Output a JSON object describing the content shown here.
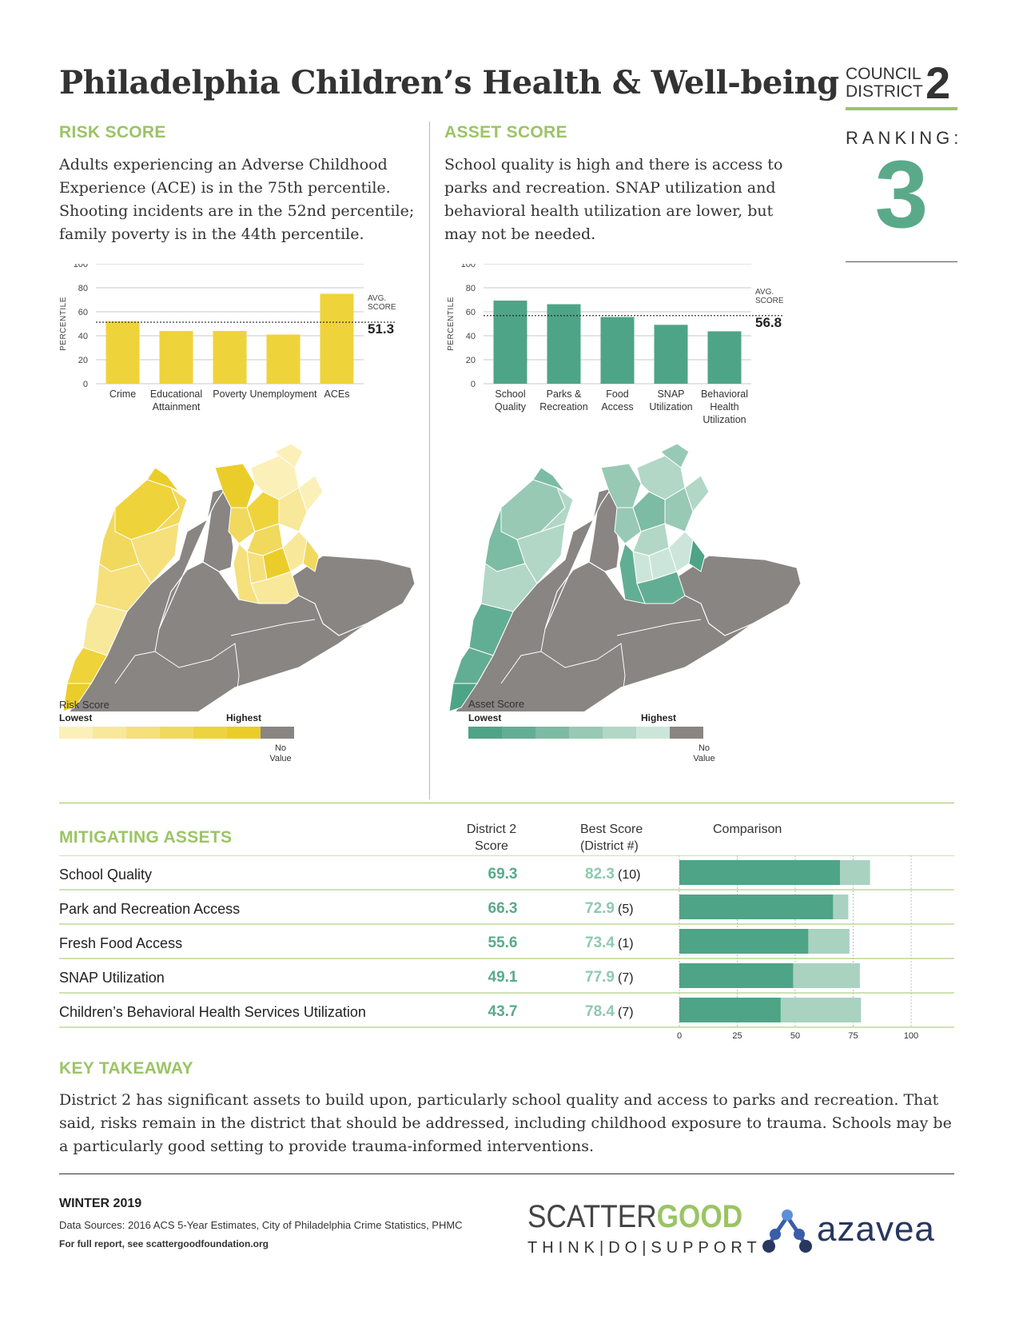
{
  "header": {
    "title": "Philadelphia Children’s Health & Well-being",
    "council_label_1": "COUNCIL",
    "council_label_2": "DISTRICT",
    "district_number": "2",
    "ranking_label": "RANKING:",
    "ranking_value": "3"
  },
  "risk": {
    "heading": "RISK SCORE",
    "text": "Adults experiencing an Adverse Childhood Experience (ACE) is in the 75th percentile. Shooting incidents are in the 52nd percentile; family poverty is in the 44th percentile.",
    "legend_title": "Risk Score",
    "legend_low": "Lowest",
    "legend_high": "Highest",
    "legend_no_value_1": "No",
    "legend_no_value_2": "Value",
    "legend_colors": [
      "#fbf0b8",
      "#f8e89a",
      "#f5e07c",
      "#f1d95e",
      "#eed340",
      "#ebcd2a",
      "#888583"
    ]
  },
  "asset": {
    "heading": "ASSET SCORE",
    "text": "School quality is high and there is access to parks and recreation. SNAP utilization and behavioral health utilization are lower, but may not be needed.",
    "legend_title": "Asset Score",
    "legend_low": "Lowest",
    "legend_high": "Highest",
    "legend_no_value_1": "No",
    "legend_no_value_2": "Value",
    "legend_colors": [
      "#4ea487",
      "#62ae94",
      "#7cbba4",
      "#98c9b5",
      "#b2d7c7",
      "#cce5da",
      "#888583"
    ]
  },
  "chart_data": [
    {
      "type": "bar",
      "name": "risk-chart",
      "categories": [
        "Crime",
        "Educational Attainment",
        "Poverty",
        "Unemployment",
        "ACEs"
      ],
      "category_lines": [
        [
          "Crime"
        ],
        [
          "Educational",
          "Attainment"
        ],
        [
          "Poverty"
        ],
        [
          "Unemployment"
        ],
        [
          "ACEs"
        ]
      ],
      "values": [
        52,
        44,
        44,
        41,
        75
      ],
      "ylabel": "PERCENTILE",
      "ylim": [
        0,
        100
      ],
      "yticks": [
        0,
        20,
        40,
        60,
        80,
        100
      ],
      "avg_label_1": "AVG.",
      "avg_label_2": "SCORE",
      "avg_value": 51.3,
      "color": "#efd33a"
    },
    {
      "type": "bar",
      "name": "asset-chart",
      "categories": [
        "School Quality",
        "Parks & Recreation",
        "Food Access",
        "SNAP Utilization",
        "Behavioral Health Utilization"
      ],
      "category_lines": [
        [
          "School",
          "Quality"
        ],
        [
          "Parks &",
          "Recreation"
        ],
        [
          "Food",
          "Access"
        ],
        [
          "SNAP",
          "Utilization"
        ],
        [
          "Behavioral",
          "Health",
          "Utilization"
        ]
      ],
      "values": [
        69.3,
        66.3,
        55.6,
        49.1,
        43.7
      ],
      "ylabel": "PERCENTILE",
      "ylim": [
        0,
        100
      ],
      "yticks": [
        0,
        20,
        40,
        60,
        80,
        100
      ],
      "avg_label_1": "AVG.",
      "avg_label_2": "SCORE",
      "avg_value": 56.8,
      "color": "#4ea487"
    },
    {
      "type": "bar",
      "name": "comparison-chart",
      "title": "Comparison",
      "categories": [
        "School Quality",
        "Park and Recreation Access",
        "Fresh Food Access",
        "SNAP Utilization",
        "Children’s Behavioral Health Services Utilization"
      ],
      "series": [
        {
          "name": "District 2 Score",
          "values": [
            69.3,
            66.3,
            55.6,
            49.1,
            43.7
          ],
          "color": "#4ea487"
        },
        {
          "name": "Best Score",
          "values": [
            82.3,
            72.9,
            73.4,
            77.9,
            78.4
          ],
          "color": "#a9d2c1"
        }
      ],
      "xlim": [
        0,
        100
      ],
      "xticks": [
        0,
        25,
        50,
        75,
        100
      ]
    }
  ],
  "mitigating": {
    "heading": "MITIGATING ASSETS",
    "col_score_1": "District 2",
    "col_score_2": "Score",
    "col_best_1": "Best Score",
    "col_best_2": "(District #)",
    "col_comparison": "Comparison",
    "rows": [
      {
        "label": "School Quality",
        "score": "69.3",
        "best": "82.3",
        "district": "(10)"
      },
      {
        "label": "Park and Recreation Access",
        "score": "66.3",
        "best": "72.9",
        "district": "(5)"
      },
      {
        "label": "Fresh Food Access",
        "score": "55.6",
        "best": "73.4",
        "district": "(1)"
      },
      {
        "label": "SNAP Utilization",
        "score": "49.1",
        "best": "77.9",
        "district": "(7)"
      },
      {
        "label": "Children’s Behavioral Health Services Utilization",
        "score": "43.7",
        "best": "78.4",
        "district": "(7)"
      }
    ]
  },
  "takeaway": {
    "heading": "KEY TAKEAWAY",
    "text": "District 2 has significant assets to build upon, particularly school quality and access to parks and recreation. That said, risks remain in the district that should be addressed, including childhood exposure to trauma. Schools may be a particularly good setting to provide trauma-informed interventions."
  },
  "footer": {
    "season": "WINTER 2019",
    "sources": "Data Sources: 2016 ACS 5-Year Estimates, City of Philadelphia  Crime Statistics, PHMC",
    "report": "For full report, see scattergoodfoundation.org",
    "scattergood_a": "SCATTER",
    "scattergood_b": "GOOD",
    "scattergood_tagline": "THINK|DO|SUPPORT",
    "azavea": "azavea"
  }
}
